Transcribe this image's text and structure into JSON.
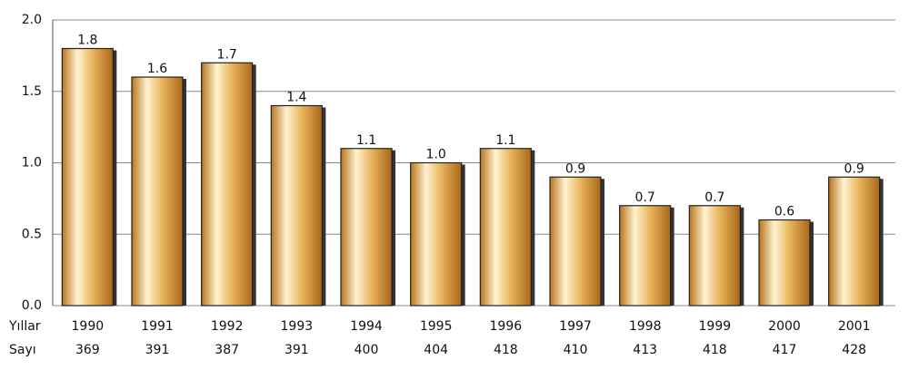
{
  "chart_data": {
    "type": "bar",
    "category_label": "Yıllar",
    "categories": [
      "1990",
      "1991",
      "1992",
      "1993",
      "1994",
      "1995",
      "1996",
      "1997",
      "1998",
      "1999",
      "2000",
      "2001"
    ],
    "values": [
      1.8,
      1.6,
      1.7,
      1.4,
      1.1,
      1.0,
      1.1,
      0.9,
      0.7,
      0.7,
      0.6,
      0.9
    ],
    "value_labels": [
      "1.8",
      "1.6",
      "1.7",
      "1.4",
      "1.1",
      "1.0",
      "1.1",
      "0.9",
      "0.7",
      "0.7",
      "0.6",
      "0.9"
    ],
    "counts": {
      "label": "Sayı",
      "values": [
        "369",
        "391",
        "387",
        "391",
        "400",
        "404",
        "418",
        "410",
        "413",
        "418",
        "417",
        "428"
      ]
    },
    "color": "#e0a548",
    "ylim": [
      0,
      2
    ],
    "yticks": [
      {
        "value": 0,
        "label": "0.0"
      },
      0.5,
      {
        "value": 1,
        "label": "1.0"
      },
      1.5,
      {
        "value": 2,
        "label": "2.0"
      }
    ],
    "grid": true
  }
}
